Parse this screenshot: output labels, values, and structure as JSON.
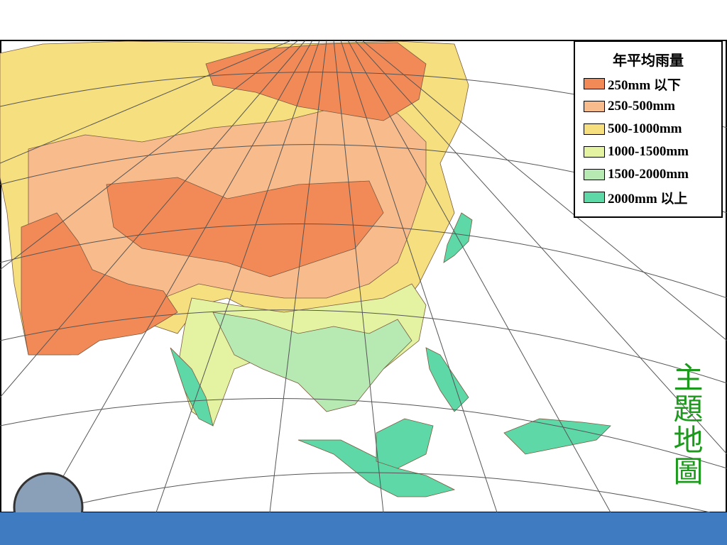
{
  "legend": {
    "title": "年平均雨量",
    "items": [
      {
        "label": "250mm 以下",
        "color": "#f28a58"
      },
      {
        "label": "250-500mm",
        "color": "#f8bb8c"
      },
      {
        "label": "500-1000mm",
        "color": "#f6df7e"
      },
      {
        "label": "1000-1500mm",
        "color": "#e3f3a2"
      },
      {
        "label": "1500-2000mm",
        "color": "#b6eab2"
      },
      {
        "label": "2000mm 以上",
        "color": "#5fd8a8"
      }
    ]
  },
  "side_label": "主題地圖"
}
